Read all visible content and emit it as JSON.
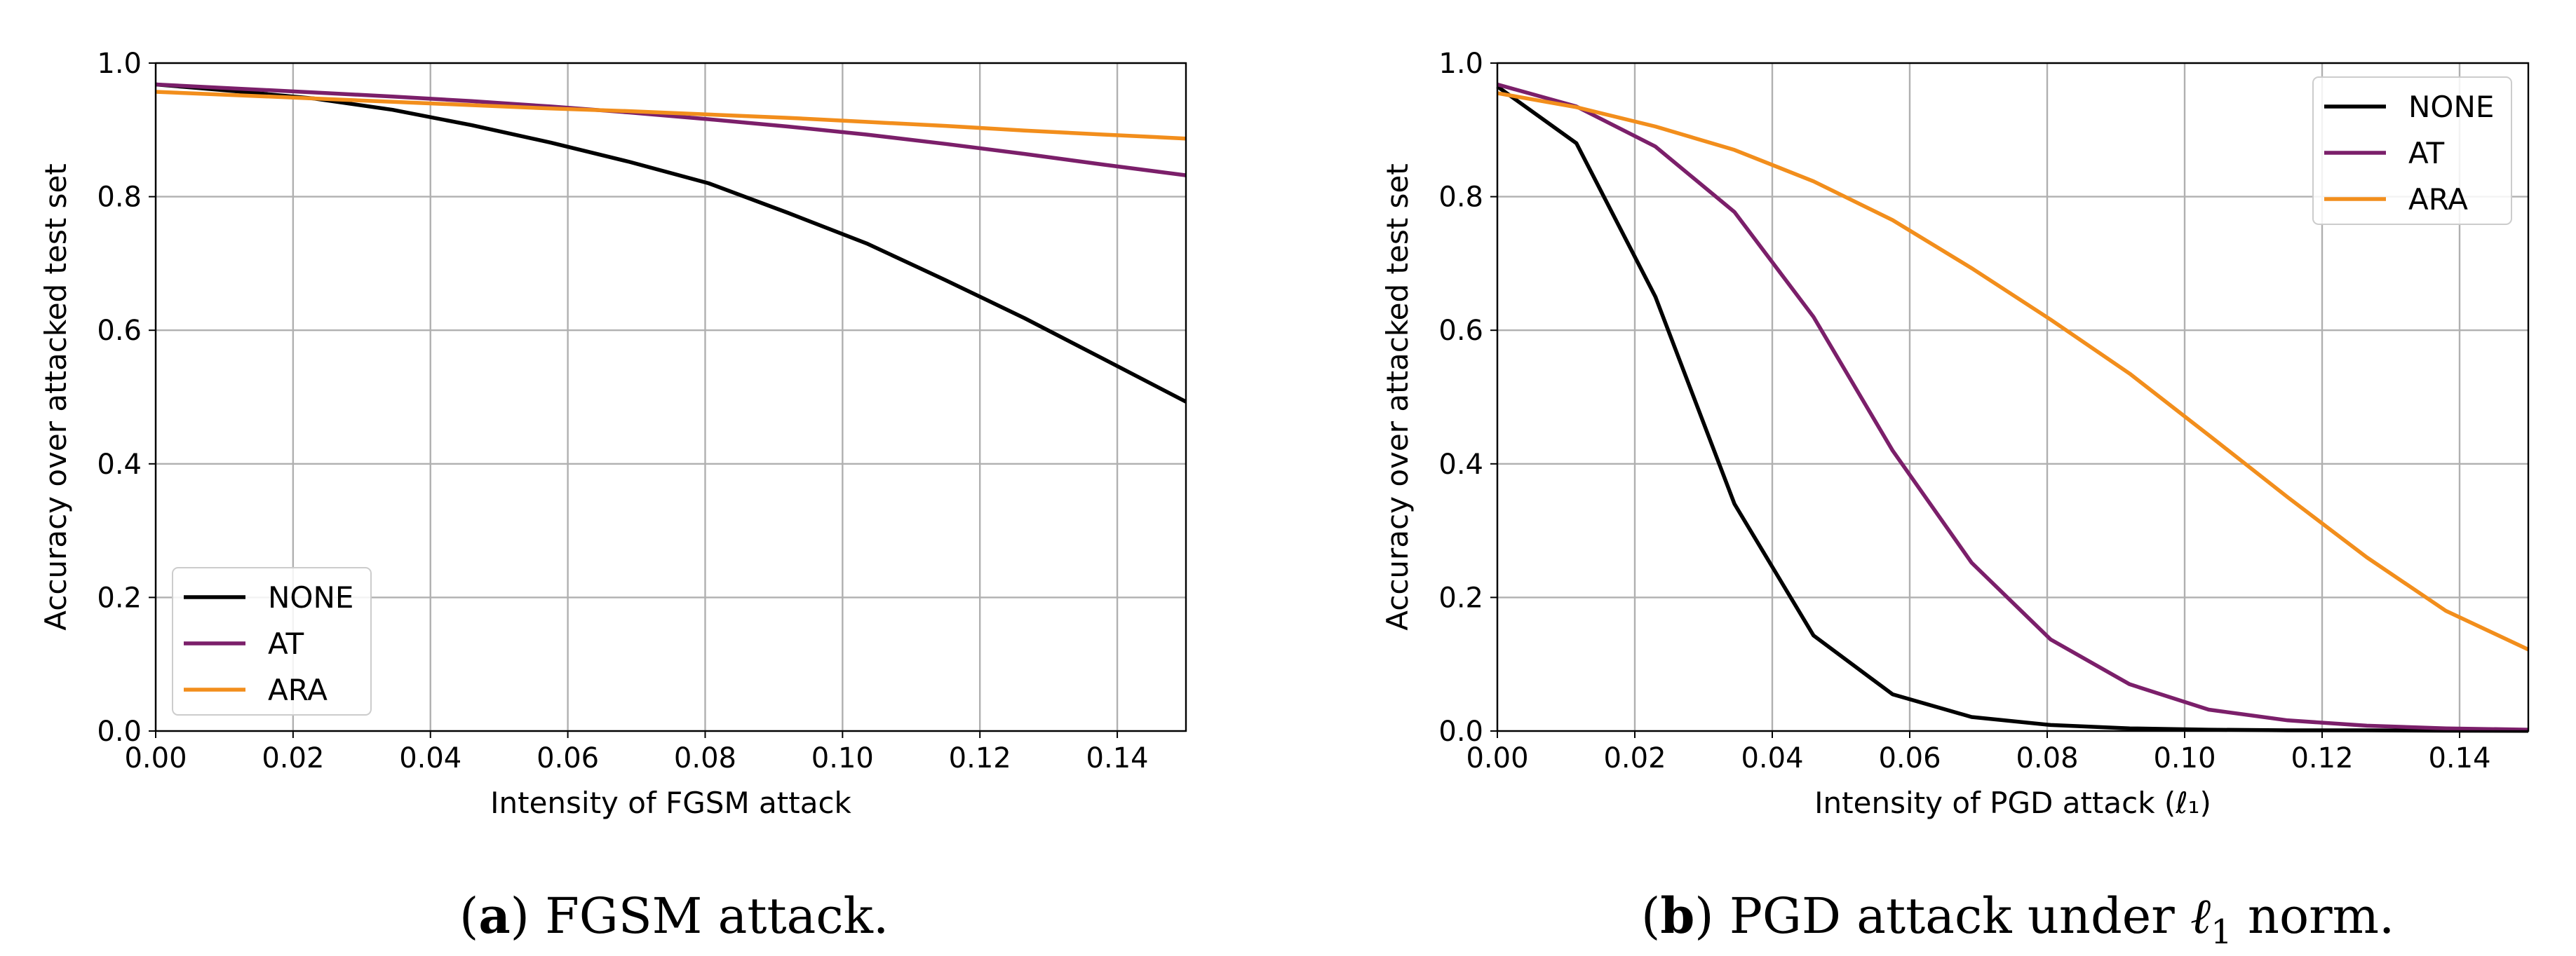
{
  "chart_data": [
    {
      "type": "line",
      "panel": "a",
      "xlabel": "Intensity of FGSM attack",
      "ylabel": "Accuracy over attacked test set",
      "xlim": [
        0.0,
        0.15
      ],
      "ylim": [
        0.0,
        1.0
      ],
      "xticks": [
        "0.00",
        "0.02",
        "0.04",
        "0.06",
        "0.08",
        "0.10",
        "0.12",
        "0.14"
      ],
      "yticks": [
        "0.0",
        "0.2",
        "0.4",
        "0.6",
        "0.8",
        "1.0"
      ],
      "grid": true,
      "legend_position": "lower-left",
      "series": [
        {
          "name": "NONE",
          "color": "#000000",
          "x": [
            0.0,
            0.0115,
            0.023,
            0.0345,
            0.046,
            0.0575,
            0.069,
            0.0805,
            0.092,
            0.1035,
            0.115,
            0.1265,
            0.138,
            0.15
          ],
          "y": [
            0.968,
            0.958,
            0.947,
            0.93,
            0.907,
            0.881,
            0.852,
            0.82,
            0.776,
            0.73,
            0.675,
            0.618,
            0.557,
            0.493
          ]
        },
        {
          "name": "AT",
          "color": "#7b1f6a",
          "x": [
            0.0,
            0.0115,
            0.023,
            0.0345,
            0.046,
            0.0575,
            0.069,
            0.0805,
            0.092,
            0.1035,
            0.115,
            0.1265,
            0.138,
            0.15
          ],
          "y": [
            0.968,
            0.962,
            0.956,
            0.95,
            0.943,
            0.935,
            0.926,
            0.916,
            0.905,
            0.893,
            0.879,
            0.864,
            0.848,
            0.832
          ]
        },
        {
          "name": "ARA",
          "color": "#f28e1c",
          "x": [
            0.0,
            0.0115,
            0.023,
            0.0345,
            0.046,
            0.0575,
            0.069,
            0.0805,
            0.092,
            0.1035,
            0.115,
            0.1265,
            0.138,
            0.15
          ],
          "y": [
            0.957,
            0.952,
            0.947,
            0.942,
            0.937,
            0.932,
            0.928,
            0.923,
            0.918,
            0.912,
            0.906,
            0.899,
            0.893,
            0.887
          ]
        }
      ]
    },
    {
      "type": "line",
      "panel": "b",
      "xlabel": "Intensity of PGD attack (ℓ₁)",
      "ylabel": "Accuracy over attacked test set",
      "xlim": [
        0.0,
        0.15
      ],
      "ylim": [
        0.0,
        1.0
      ],
      "xticks": [
        "0.00",
        "0.02",
        "0.04",
        "0.06",
        "0.08",
        "0.10",
        "0.12",
        "0.14"
      ],
      "yticks": [
        "0.0",
        "0.2",
        "0.4",
        "0.6",
        "0.8",
        "1.0"
      ],
      "grid": true,
      "legend_position": "upper-right",
      "series": [
        {
          "name": "NONE",
          "color": "#000000",
          "x": [
            0.0,
            0.0115,
            0.023,
            0.0345,
            0.046,
            0.0575,
            0.069,
            0.0805,
            0.092,
            0.1035,
            0.115,
            0.1265,
            0.138,
            0.15
          ],
          "y": [
            0.965,
            0.88,
            0.65,
            0.34,
            0.143,
            0.055,
            0.021,
            0.009,
            0.004,
            0.002,
            0.001,
            0.001,
            0.0005,
            0.0003
          ]
        },
        {
          "name": "AT",
          "color": "#7b1f6a",
          "x": [
            0.0,
            0.0115,
            0.023,
            0.0345,
            0.046,
            0.0575,
            0.069,
            0.0805,
            0.092,
            0.1035,
            0.115,
            0.1265,
            0.138,
            0.15
          ],
          "y": [
            0.968,
            0.935,
            0.875,
            0.777,
            0.62,
            0.42,
            0.252,
            0.137,
            0.07,
            0.032,
            0.016,
            0.008,
            0.004,
            0.002
          ]
        },
        {
          "name": "ARA",
          "color": "#f28e1c",
          "x": [
            0.0,
            0.0115,
            0.023,
            0.0345,
            0.046,
            0.0575,
            0.069,
            0.0805,
            0.092,
            0.1035,
            0.115,
            0.1265,
            0.138,
            0.15
          ],
          "y": [
            0.955,
            0.934,
            0.905,
            0.87,
            0.823,
            0.765,
            0.693,
            0.616,
            0.535,
            0.443,
            0.35,
            0.26,
            0.18,
            0.122
          ]
        }
      ]
    }
  ],
  "captions": [
    {
      "letter": "a",
      "text": " FGSM attack."
    },
    {
      "letter": "b",
      "text_before": " PGD attack under ",
      "symbol": "ℓ",
      "subscript": "1",
      "text_after": " norm."
    }
  ]
}
